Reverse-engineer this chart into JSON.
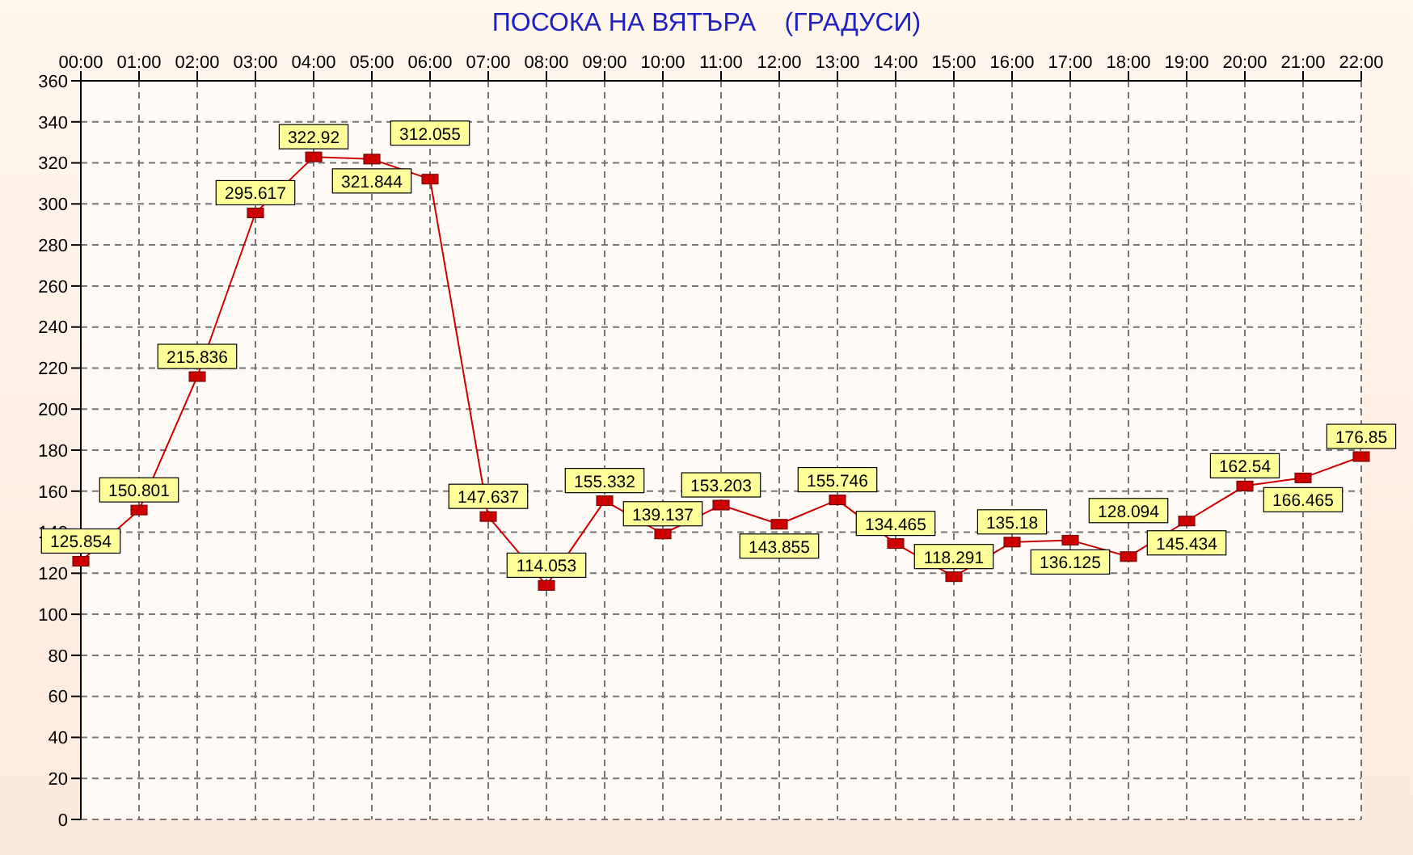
{
  "chart_data": {
    "type": "line",
    "title": "ПОСОКА НА ВЯТЪРА    (ГРАДУСИ)",
    "categories": [
      "00:00",
      "01:00",
      "02:00",
      "03:00",
      "04:00",
      "05:00",
      "06:00",
      "07:00",
      "08:00",
      "09:00",
      "10:00",
      "11:00",
      "12:00",
      "13:00",
      "14:00",
      "15:00",
      "16:00",
      "17:00",
      "18:00",
      "19:00",
      "20:00",
      "21:00",
      "22:00"
    ],
    "series": [
      {
        "color": "#cc0000",
        "values": [
          125.854,
          150.801,
          215.836,
          295.617,
          322.92,
          321.844,
          312.055,
          147.637,
          114.053,
          155.332,
          139.137,
          153.203,
          143.855,
          155.746,
          134.465,
          118.291,
          135.18,
          136.125,
          128.094,
          145.434,
          162.54,
          166.465,
          176.85
        ]
      }
    ],
    "ylim": [
      0,
      360
    ],
    "yticks": [
      0,
      20,
      40,
      60,
      80,
      100,
      120,
      140,
      160,
      180,
      200,
      220,
      240,
      260,
      280,
      300,
      320,
      340,
      360
    ],
    "grid": true,
    "marker": "square",
    "data_labels": true,
    "legend": false
  }
}
